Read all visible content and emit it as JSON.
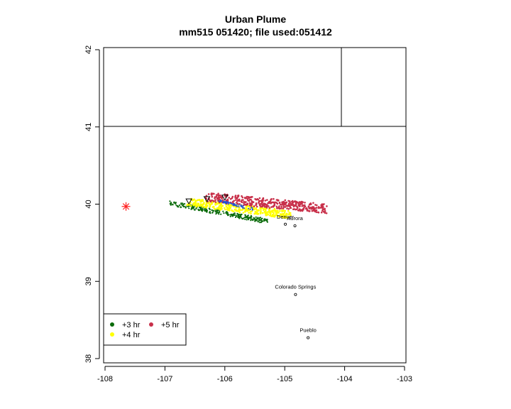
{
  "title": "Urban Plume",
  "subtitle": "mm515 051420; file used:051412",
  "map": {
    "x_ticks": [
      "-108",
      "-107",
      "-106",
      "-105",
      "-104",
      "-103"
    ],
    "y_ticks": [
      "38",
      "39",
      "40",
      "41",
      "42"
    ],
    "xlim": [
      -108,
      -103
    ],
    "ylim": [
      38,
      42
    ],
    "source": {
      "lon": -107.65,
      "lat": 39.97,
      "color": "#ff2020"
    },
    "cities": [
      {
        "name": "Denver",
        "lon": -104.99,
        "lat": 39.74
      },
      {
        "name": "Aurora",
        "lon": -104.83,
        "lat": 39.72
      },
      {
        "name": "Colorado Springs",
        "lon": -104.82,
        "lat": 38.83
      },
      {
        "name": "Pueblo",
        "lon": -104.61,
        "lat": 38.27
      }
    ],
    "legend": [
      {
        "label": "+3 hr",
        "color": "#0a6b0a"
      },
      {
        "label": "+5 hr",
        "color": "#c8304a"
      },
      {
        "label": "+4 hr",
        "color": "#ffff00"
      }
    ]
  }
}
